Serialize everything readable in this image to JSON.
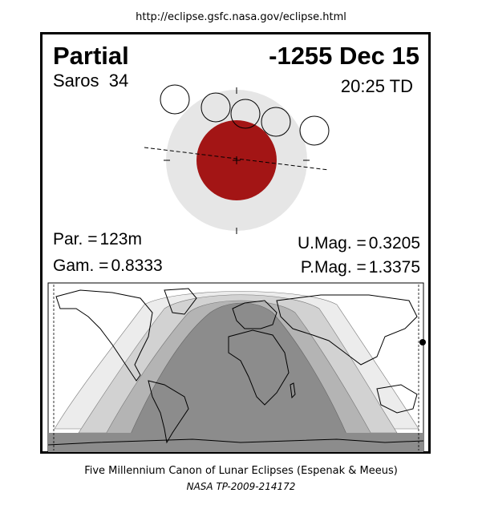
{
  "source_url": "http://eclipse.gsfc.nasa.gov/eclipse.html",
  "eclipse": {
    "type": "Partial",
    "date": "-1255 Dec 15",
    "saros_label": "Saros",
    "saros_number": "34",
    "time": "20:25 TD"
  },
  "parameters": {
    "par_label": "Par. =",
    "par_value": "123m",
    "gam_label": "Gam. =",
    "gam_value": "0.8333",
    "umag_label": "U.Mag. =",
    "umag_value": "0.3205",
    "pmag_label": "P.Mag. =",
    "pmag_value": "1.3375"
  },
  "colors": {
    "umbra": "#a31515",
    "penumbra": "#e6e6e6",
    "map_dark": "#8c8c8c",
    "map_mid": "#b4b4b4",
    "map_light": "#d2d2d2",
    "map_pale": "#ececec"
  },
  "footer": {
    "line1": "Five Millennium Canon of Lunar Eclipses (Espenak & Meeus)",
    "line2": "NASA TP-2009-214172"
  }
}
